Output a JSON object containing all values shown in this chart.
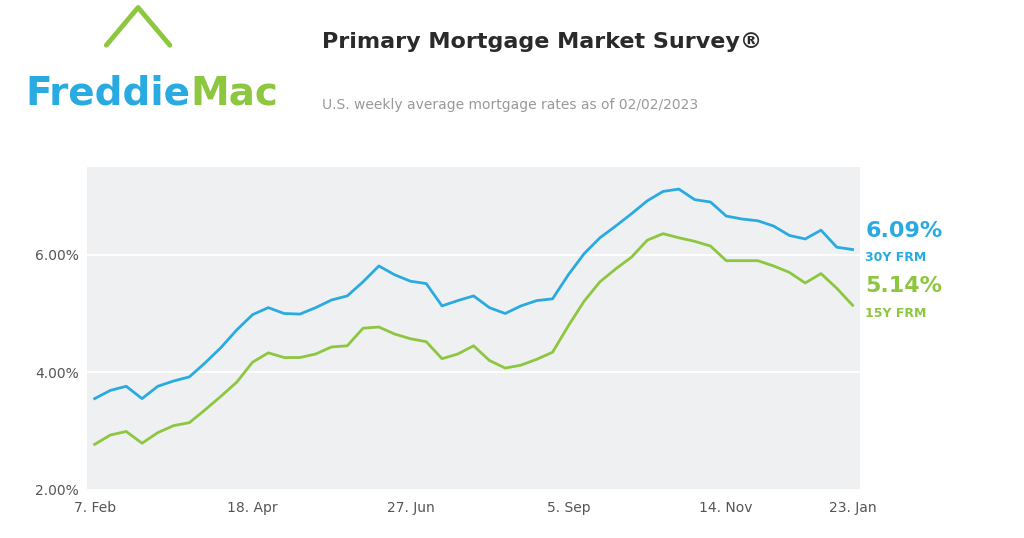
{
  "title": "Primary Mortgage Market Survey®",
  "subtitle": "U.S. weekly average mortgage rates as of 02/02/2023",
  "freddie_blue": "#29abe2",
  "freddie_green": "#8dc63f",
  "chart_bg": "#eef0f2",
  "title_color": "#333333",
  "subtitle_color": "#999999",
  "rate_30y_label": "6.09%",
  "rate_15y_label": "5.14%",
  "label_30y": "30Y FRM",
  "label_15y": "15Y FRM",
  "ylim": [
    2.0,
    7.5
  ],
  "yticks": [
    2.0,
    4.0,
    6.0
  ],
  "xtick_labels": [
    "7. Feb",
    "18. Apr",
    "27. Jun",
    "5. Sep",
    "14. Nov",
    "23. Jan"
  ],
  "tick_x_fracs": [
    0.0,
    0.208,
    0.417,
    0.625,
    0.833,
    1.0
  ],
  "rate_30y": [
    3.55,
    3.69,
    3.76,
    3.55,
    3.76,
    3.85,
    3.92,
    4.16,
    4.42,
    4.72,
    4.98,
    5.1,
    5.0,
    4.99,
    5.1,
    5.23,
    5.3,
    5.54,
    5.81,
    5.66,
    5.55,
    5.51,
    5.13,
    5.22,
    5.3,
    5.1,
    5.0,
    5.13,
    5.22,
    5.25,
    5.66,
    6.02,
    6.29,
    6.49,
    6.7,
    6.92,
    7.08,
    7.12,
    6.94,
    6.9,
    6.66,
    6.61,
    6.58,
    6.49,
    6.33,
    6.27,
    6.42,
    6.13,
    6.09
  ],
  "rate_15y": [
    2.77,
    2.93,
    2.99,
    2.79,
    2.97,
    3.09,
    3.14,
    3.36,
    3.59,
    3.83,
    4.17,
    4.33,
    4.25,
    4.25,
    4.31,
    4.43,
    4.45,
    4.75,
    4.77,
    4.65,
    4.57,
    4.52,
    4.23,
    4.31,
    4.45,
    4.2,
    4.07,
    4.12,
    4.22,
    4.34,
    4.79,
    5.21,
    5.54,
    5.76,
    5.96,
    6.25,
    6.36,
    6.29,
    6.23,
    6.15,
    5.9,
    5.9,
    5.9,
    5.81,
    5.7,
    5.52,
    5.68,
    5.43,
    5.14
  ]
}
